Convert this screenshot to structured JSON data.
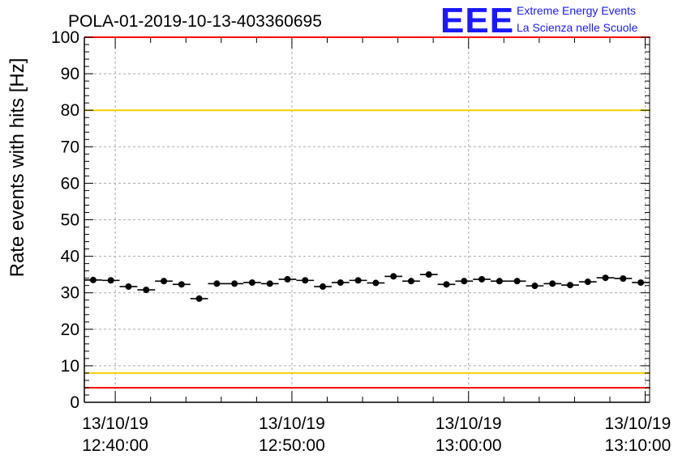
{
  "logo": {
    "letters": "EEE",
    "line1": "Extreme Energy Events",
    "line2": "La Scienza nelle Scuole",
    "color": "#1a1aff"
  },
  "chart_data": {
    "type": "scatter",
    "title": "POLA-01-2019-10-13-403360695",
    "ylabel": "Rate events with hits [Hz]",
    "xlabel": "",
    "ylim": [
      0,
      100
    ],
    "y_ticks": [
      0,
      10,
      20,
      30,
      40,
      50,
      60,
      70,
      80,
      90,
      100
    ],
    "x_ticks": [
      {
        "line1": "13/10/19",
        "line2": "12:40:00",
        "minute": 0
      },
      {
        "line1": "13/10/19",
        "line2": "12:50:00",
        "minute": 10
      },
      {
        "line1": "13/10/19",
        "line2": "13:00:00",
        "minute": 20
      },
      {
        "line1": "13/10/19",
        "line2": "13:10:00",
        "minute": 30
      }
    ],
    "x_range_minutes": [
      -1.75,
      30.25
    ],
    "bin_width_minutes": 1,
    "grid": true,
    "reference_lines": [
      {
        "y": 100,
        "color": "#ff0000"
      },
      {
        "y": 80,
        "color": "#f5d000"
      },
      {
        "y": 8,
        "color": "#f5d000"
      },
      {
        "y": 4,
        "color": "#ff0000"
      }
    ],
    "series": [
      {
        "marker_color": "#000000",
        "x_minutes": [
          -1.25,
          -0.25,
          0.75,
          1.75,
          2.75,
          3.75,
          4.75,
          5.75,
          6.75,
          7.75,
          8.75,
          9.75,
          10.75,
          11.75,
          12.75,
          13.75,
          14.75,
          15.75,
          16.75,
          17.75,
          18.75,
          19.75,
          20.75,
          21.75,
          22.75,
          23.75,
          24.75,
          25.75,
          26.75,
          27.75,
          28.75,
          29.75
        ],
        "values": [
          33.5,
          33.4,
          31.7,
          30.8,
          33.2,
          32.3,
          28.4,
          32.5,
          32.5,
          32.8,
          32.5,
          33.7,
          33.4,
          31.7,
          32.8,
          33.4,
          32.7,
          34.5,
          33.2,
          35.0,
          32.3,
          33.2,
          33.7,
          33.2,
          33.2,
          31.9,
          32.5,
          32.1,
          33.0,
          34.1,
          33.9,
          32.8
        ]
      }
    ]
  }
}
